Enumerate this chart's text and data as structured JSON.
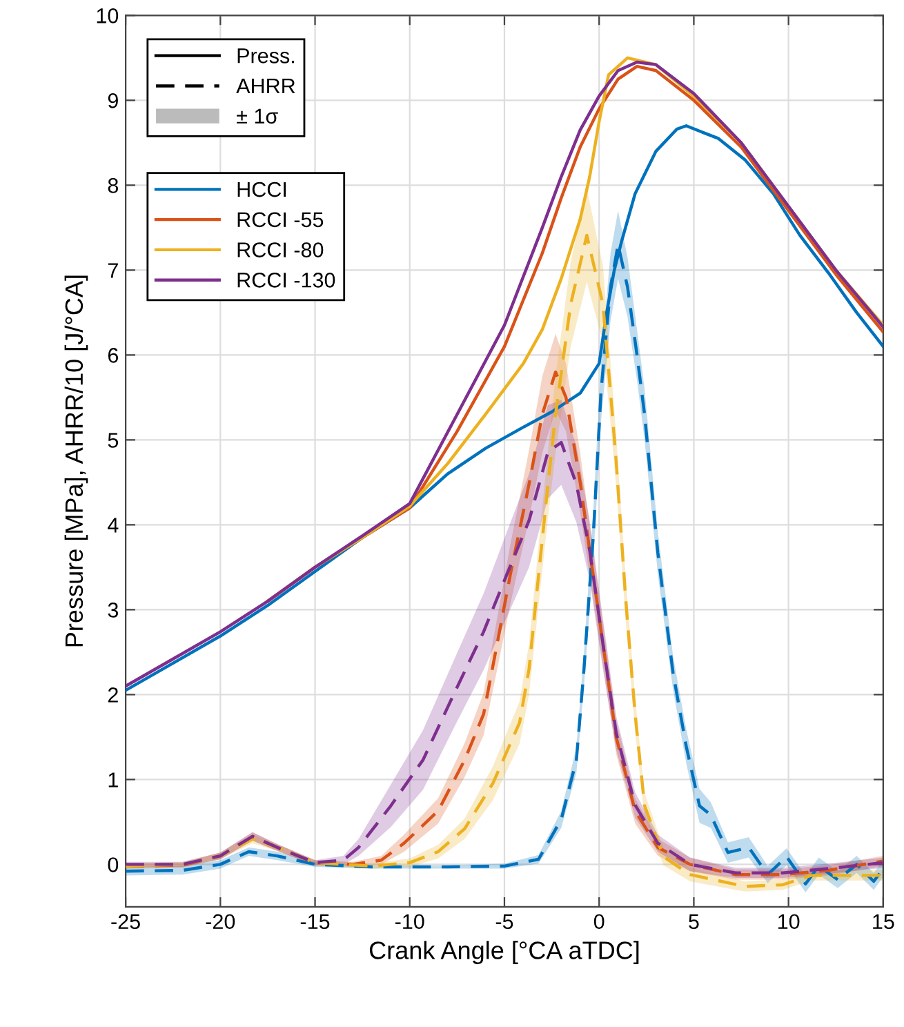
{
  "chart_data": {
    "type": "line",
    "xlabel": "Crank Angle [°CA aTDC]",
    "ylabel": "Pressure [MPa], AHRR/10 [J/°CA]",
    "xlim": [
      -25,
      15
    ],
    "xticks": [
      -25,
      -20,
      -15,
      -10,
      -5,
      0,
      5,
      10,
      15
    ],
    "ylim": [
      -0.5,
      10
    ],
    "yticks": [
      0,
      1,
      2,
      3,
      4,
      5,
      6,
      7,
      8,
      9,
      10
    ],
    "grid": true,
    "legend": "top left",
    "annotations": [
      "Press.",
      "AHRR",
      "± 1σ"
    ],
    "series": [
      {
        "name": "HCCI",
        "color": "#0072bd",
        "line_style": "solid",
        "x": [
          -25,
          -22.5,
          -20,
          -17.5,
          -15,
          -12.5,
          -10,
          -8,
          -6,
          -4,
          -2.5,
          -1,
          0,
          0.4,
          0.8,
          1.2,
          1.9,
          3,
          4.1,
          4.6,
          5.5,
          6.3,
          7.7,
          9.2,
          10.6,
          12.1,
          13.6,
          15
        ],
        "values": [
          2.05,
          2.37,
          2.69,
          3.05,
          3.45,
          3.85,
          4.2,
          4.6,
          4.9,
          5.15,
          5.33,
          5.55,
          5.9,
          6.5,
          7.0,
          7.35,
          7.9,
          8.4,
          8.66,
          8.7,
          8.62,
          8.55,
          8.3,
          7.9,
          7.41,
          6.97,
          6.5,
          6.1
        ]
      },
      {
        "name": "RCCI -55",
        "color": "#d95319",
        "line_style": "solid",
        "x": [
          -17.5,
          -15,
          -12.5,
          -10,
          -7.5,
          -5,
          -3,
          -2,
          -1,
          0,
          1,
          2,
          3,
          5,
          7.5,
          10,
          12.5,
          15
        ],
        "values": [
          3.1,
          3.5,
          3.85,
          4.2,
          5.1,
          6.1,
          7.2,
          7.85,
          8.45,
          8.9,
          9.25,
          9.4,
          9.35,
          9.0,
          8.45,
          7.7,
          6.95,
          6.27
        ]
      },
      {
        "name": "RCCI -80",
        "color": "#edb120",
        "line_style": "solid",
        "x": [
          -17.5,
          -15,
          -12.5,
          -10,
          -8,
          -6,
          -4,
          -3,
          -2,
          -1,
          -0.5,
          0,
          0.5,
          1.5,
          3,
          5,
          7.5,
          10,
          12.5,
          15
        ],
        "values": [
          3.1,
          3.5,
          3.85,
          4.22,
          4.72,
          5.3,
          5.9,
          6.3,
          6.9,
          7.6,
          8.1,
          8.75,
          9.3,
          9.5,
          9.42,
          9.05,
          8.5,
          7.75,
          7.0,
          6.35
        ]
      },
      {
        "name": "RCCI -130",
        "color": "#7e2f8e",
        "line_style": "solid",
        "x": [
          -25,
          -22.5,
          -20,
          -17.5,
          -15,
          -12.5,
          -10,
          -7.5,
          -5,
          -3,
          -2,
          -1,
          0,
          1,
          2,
          3,
          5,
          7.5,
          10,
          12.5,
          15
        ],
        "values": [
          2.1,
          2.42,
          2.74,
          3.1,
          3.5,
          3.87,
          4.25,
          5.3,
          6.35,
          7.5,
          8.1,
          8.65,
          9.05,
          9.35,
          9.45,
          9.42,
          9.08,
          8.5,
          7.75,
          7.0,
          6.33
        ]
      },
      {
        "color": "#0072bd",
        "line_style": "dashed",
        "x": [
          -25,
          -22,
          -20,
          -18.5,
          -17,
          -15,
          -12,
          -8,
          -5,
          -3.2,
          -2,
          -1.2,
          -0.8,
          -0.3,
          0.1,
          0.6,
          1.0,
          1.5,
          2.0,
          2.4,
          3.1,
          3.9,
          4.6,
          5.3,
          5.9,
          6.8,
          7.9,
          8.9,
          9.9,
          10.9,
          11.6,
          12.6,
          13.6,
          14.5,
          15
        ],
        "values": [
          -0.08,
          -0.07,
          0.0,
          0.15,
          0.1,
          0.0,
          -0.03,
          -0.03,
          -0.02,
          0.06,
          0.53,
          1.23,
          2.3,
          3.9,
          5.57,
          6.8,
          7.3,
          6.8,
          6.0,
          5.3,
          3.67,
          2.26,
          1.39,
          0.69,
          0.58,
          0.14,
          0.2,
          -0.12,
          0.09,
          -0.23,
          -0.02,
          -0.18,
          0.0,
          -0.2,
          -0.05
        ],
        "lower": [
          -0.13,
          -0.12,
          -0.05,
          0.1,
          0.05,
          -0.03,
          -0.05,
          -0.05,
          -0.05,
          0.01,
          0.43,
          1.08,
          2.1,
          3.6,
          5.22,
          6.4,
          6.9,
          6.45,
          5.7,
          5.0,
          3.42,
          2.06,
          1.19,
          0.49,
          0.43,
          0.02,
          0.08,
          -0.22,
          -0.01,
          -0.33,
          -0.12,
          -0.28,
          -0.1,
          -0.3,
          -0.15
        ],
        "upper": [
          -0.03,
          -0.02,
          0.05,
          0.2,
          0.15,
          0.03,
          -0.01,
          -0.01,
          0.01,
          0.11,
          0.63,
          1.38,
          2.5,
          4.2,
          5.92,
          7.2,
          7.7,
          7.15,
          6.3,
          5.6,
          3.92,
          2.46,
          1.59,
          0.89,
          0.73,
          0.26,
          0.32,
          -0.02,
          0.19,
          -0.13,
          0.08,
          -0.08,
          0.1,
          -0.1,
          0.05
        ]
      },
      {
        "color": "#d95319",
        "line_style": "dashed",
        "x": [
          -25,
          -22,
          -20,
          -18.3,
          -17,
          -15,
          -13,
          -11.5,
          -10.3,
          -8.5,
          -7.1,
          -6.1,
          -5.4,
          -4.7,
          -3.7,
          -3.0,
          -2.3,
          -1.75,
          -1.0,
          -0.5,
          0.2,
          0.9,
          1.9,
          3.1,
          4.8,
          7.2,
          9.7,
          12.1,
          15
        ],
        "values": [
          -0.02,
          -0.01,
          0.1,
          0.33,
          0.2,
          0.02,
          0.0,
          0.05,
          0.25,
          0.63,
          1.23,
          1.77,
          2.58,
          3.4,
          4.48,
          5.3,
          5.8,
          5.5,
          4.5,
          3.7,
          2.6,
          1.5,
          0.63,
          0.2,
          0.0,
          -0.12,
          -0.12,
          -0.07,
          0.04
        ],
        "lower": [
          -0.05,
          -0.04,
          0.06,
          0.28,
          0.16,
          -0.01,
          -0.03,
          0.0,
          0.15,
          0.48,
          1.03,
          1.52,
          2.28,
          3.05,
          4.08,
          4.85,
          5.35,
          5.1,
          4.15,
          3.4,
          2.35,
          1.3,
          0.48,
          0.1,
          -0.08,
          -0.18,
          -0.18,
          -0.13,
          -0.02
        ],
        "upper": [
          0.01,
          0.02,
          0.14,
          0.38,
          0.24,
          0.05,
          0.03,
          0.1,
          0.35,
          0.78,
          1.43,
          2.02,
          2.88,
          3.75,
          4.88,
          5.75,
          6.25,
          5.9,
          4.85,
          4.0,
          2.85,
          1.7,
          0.78,
          0.3,
          0.08,
          -0.06,
          -0.06,
          -0.01,
          0.1
        ]
      },
      {
        "color": "#edb120",
        "line_style": "dashed",
        "x": [
          -25,
          -22,
          -20,
          -18.3,
          -17,
          -15,
          -12,
          -10,
          -8.5,
          -7.1,
          -5.6,
          -4.2,
          -3.7,
          -3.2,
          -2.7,
          -2.3,
          -1.5,
          -0.65,
          0.2,
          0.7,
          0.9,
          1.4,
          1.9,
          2.4,
          3.4,
          4.8,
          7.7,
          9.7,
          11.2,
          15
        ],
        "values": [
          -0.02,
          0.0,
          0.1,
          0.3,
          0.2,
          0.02,
          -0.02,
          0.02,
          0.15,
          0.42,
          0.96,
          1.67,
          2.3,
          3.4,
          4.48,
          5.3,
          6.6,
          7.41,
          6.6,
          5.3,
          4.75,
          3.13,
          1.77,
          0.69,
          0.09,
          -0.12,
          -0.26,
          -0.24,
          -0.13,
          -0.13
        ],
        "lower": [
          -0.05,
          -0.03,
          0.06,
          0.25,
          0.16,
          -0.01,
          -0.05,
          -0.03,
          0.07,
          0.3,
          0.76,
          1.42,
          2.0,
          3.05,
          4.08,
          4.85,
          6.1,
          6.86,
          6.15,
          4.95,
          4.45,
          2.88,
          1.57,
          0.54,
          -0.01,
          -0.2,
          -0.32,
          -0.3,
          -0.19,
          -0.19
        ],
        "upper": [
          0.01,
          0.03,
          0.14,
          0.35,
          0.24,
          0.05,
          0.01,
          0.07,
          0.23,
          0.54,
          1.16,
          1.92,
          2.6,
          3.75,
          4.88,
          5.75,
          7.1,
          7.96,
          7.05,
          5.65,
          5.05,
          3.38,
          1.97,
          0.84,
          0.19,
          -0.04,
          -0.2,
          -0.18,
          -0.07,
          -0.07
        ]
      },
      {
        "color": "#7e2f8e",
        "line_style": "dashed",
        "x": [
          -25,
          -22,
          -20,
          -18.3,
          -17,
          -15,
          -13.5,
          -12.7,
          -11,
          -9.3,
          -7.6,
          -6.1,
          -4.9,
          -3.7,
          -2.7,
          -2.0,
          -1.2,
          -0.5,
          0.2,
          0.9,
          1.9,
          3.1,
          4.8,
          7.2,
          9.7,
          12.1,
          15
        ],
        "values": [
          0.0,
          0.0,
          0.1,
          0.33,
          0.2,
          0.02,
          0.05,
          0.2,
          0.69,
          1.23,
          2.04,
          2.74,
          3.4,
          4.05,
          4.86,
          4.97,
          4.48,
          3.7,
          2.6,
          1.55,
          0.7,
          0.25,
          0.0,
          -0.1,
          -0.1,
          -0.05,
          0.02
        ],
        "lower": [
          -0.03,
          -0.03,
          0.06,
          0.28,
          0.16,
          -0.01,
          0.0,
          0.1,
          0.44,
          0.88,
          1.64,
          2.29,
          2.9,
          3.5,
          4.31,
          4.47,
          4.03,
          3.35,
          2.3,
          1.35,
          0.55,
          0.15,
          -0.08,
          -0.16,
          -0.16,
          -0.11,
          -0.04
        ],
        "upper": [
          0.03,
          0.03,
          0.14,
          0.38,
          0.24,
          0.05,
          0.1,
          0.3,
          0.94,
          1.58,
          2.44,
          3.19,
          3.9,
          4.6,
          5.41,
          5.47,
          4.93,
          4.05,
          2.9,
          1.75,
          0.85,
          0.35,
          0.08,
          -0.04,
          -0.04,
          0.01,
          0.08
        ]
      }
    ]
  }
}
